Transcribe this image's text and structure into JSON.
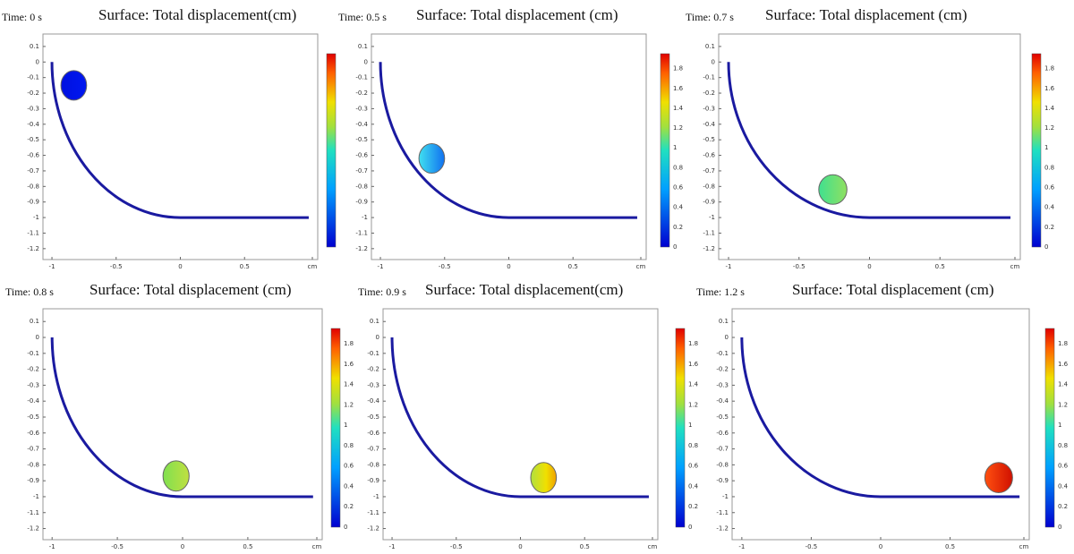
{
  "panels": [
    {
      "time": "Time: 0 s",
      "title": "Surface: Total displacement(cm)",
      "yticks": [
        "0.1",
        "0",
        "-0.1",
        "-0.2",
        "-0.3",
        "-0.4",
        "-0.5",
        "-0.6",
        "-0.7",
        "-0.8",
        "-0.9",
        "-1",
        "-1.1",
        "-1.2"
      ],
      "xticks": [
        "-1",
        "-0.5",
        "0",
        "0.5",
        "cm"
      ]
    },
    {
      "time": "Time: 0.5 s",
      "title": "Surface: Total displacement (cm)",
      "yticks": [
        "0.1",
        "0",
        "-0.1",
        "-0.2",
        "-0.3",
        "-0.4",
        "-0.5",
        "-0.6",
        "-0.7",
        "-0.8",
        "-0.9",
        "-1",
        "-1.1",
        "-1.2"
      ],
      "xticks": [
        "-1",
        "-0.5",
        "0",
        "0.5",
        "cm"
      ],
      "colorbar_ticks": [
        "0",
        "0.2",
        "0.4",
        "0.6",
        "0.8",
        "1",
        "1.2",
        "1.4",
        "1.6",
        "1.8"
      ]
    },
    {
      "time": "Time: 0.7 s",
      "title": "Surface: Total displacement (cm)",
      "yticks": [
        "0.1",
        "0",
        "-0.1",
        "-0.2",
        "-0.3",
        "-0.4",
        "-0.5",
        "-0.6",
        "-0.7",
        "-0.8",
        "-0.9",
        "-1",
        "-1.1",
        "-1.2"
      ],
      "xticks": [
        "-1",
        "-0.5",
        "0",
        "0.5",
        "cm"
      ],
      "colorbar_ticks": [
        "0",
        "0.2",
        "0.4",
        "0.6",
        "0.8",
        "1",
        "1.2",
        "1.4",
        "1.6",
        "1.8"
      ]
    },
    {
      "time": "Time: 0.8 s",
      "title": "Surface: Total displacement (cm)",
      "yticks": [
        "0.1",
        "0",
        "-0.1",
        "-0.2",
        "-0.3",
        "-0.4",
        "-0.5",
        "-0.6",
        "-0.7",
        "-0.8",
        "-0.9",
        "-1",
        "-1.1",
        "-1.2"
      ],
      "xticks": [
        "-1",
        "-0.5",
        "0",
        "0.5",
        "cm"
      ],
      "colorbar_ticks": [
        "0",
        "0.2",
        "0.4",
        "0.6",
        "0.8",
        "1",
        "1.2",
        "1.4",
        "1.6",
        "1.8"
      ]
    },
    {
      "time": "Time: 0.9 s",
      "title": "Surface: Total displacement(cm)",
      "yticks": [
        "0.1",
        "0",
        "-0.1",
        "-0.2",
        "-0.3",
        "-0.4",
        "-0.5",
        "-0.6",
        "-0.7",
        "-0.8",
        "-0.9",
        "-1",
        "-1.1",
        "-1.2"
      ],
      "xticks": [
        "-1",
        "-0.5",
        "0",
        "0.5",
        "cm"
      ],
      "colorbar_ticks": [
        "0",
        "0.2",
        "0.4",
        "0.6",
        "0.8",
        "1",
        "1.2",
        "1.4",
        "1.6",
        "1.8"
      ]
    },
    {
      "time": "Time: 1.2 s",
      "title": "Surface: Total displacement (cm)",
      "yticks": [
        "0.1",
        "0",
        "-0.1",
        "-0.2",
        "-0.3",
        "-0.4",
        "-0.5",
        "-0.6",
        "-0.7",
        "-0.8",
        "-0.9",
        "-1",
        "-1.1",
        "-1.2"
      ],
      "xticks": [
        "-1",
        "-0.5",
        "0",
        "0.5",
        "cm"
      ],
      "colorbar_ticks": [
        "0",
        "0.2",
        "0.4",
        "0.6",
        "0.8",
        "1",
        "1.2",
        "1.4",
        "1.6",
        "1.8"
      ]
    }
  ]
}
